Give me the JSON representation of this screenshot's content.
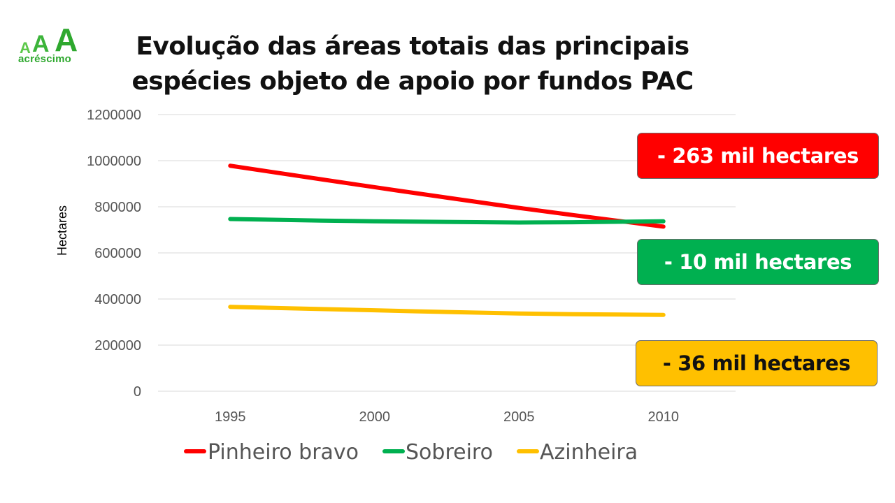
{
  "logo": {
    "letters": [
      "A",
      "A",
      "A"
    ],
    "text": "acréscimo"
  },
  "chart_data": {
    "type": "line",
    "title_lines": [
      "Evolução das áreas totais das principais",
      "espécies objeto de apoio por fundos PAC"
    ],
    "xlabel": "",
    "ylabel": "Hectares",
    "categories": [
      "1995",
      "2000",
      "2005",
      "2010"
    ],
    "ylim": [
      0,
      1200000
    ],
    "yticks": [
      "0",
      "200000",
      "400000",
      "600000",
      "800000",
      "1000000",
      "1200000"
    ],
    "grid": true,
    "legend_position": "bottom",
    "series": [
      {
        "name": "Pinheiro bravo",
        "color": "#ff0000",
        "values": [
          978000,
          885000,
          795000,
          714000
        ]
      },
      {
        "name": "Sobreiro",
        "color": "#00b050",
        "values": [
          747000,
          737000,
          732000,
          737000
        ]
      },
      {
        "name": "Azinheira",
        "color": "#ffc000",
        "values": [
          366000,
          351000,
          337000,
          331000
        ]
      }
    ],
    "annotations": [
      {
        "text": "- 263 mil hectares",
        "color": "#ff0000"
      },
      {
        "text": "- 10 mil hectares",
        "color": "#00b050"
      },
      {
        "text": "- 36 mil hectares",
        "color": "#ffc000"
      }
    ]
  }
}
